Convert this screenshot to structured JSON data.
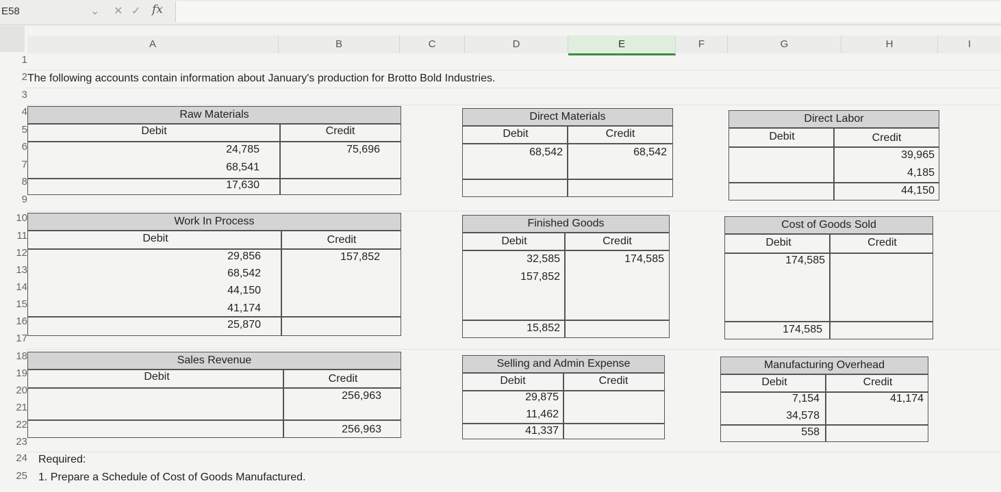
{
  "formula_bar": {
    "name_box": "E58",
    "cancel_icon": "close-icon",
    "enter_icon": "check-icon",
    "fx_label": "fx"
  },
  "columns": [
    "A",
    "B",
    "C",
    "D",
    "E",
    "F",
    "G",
    "H",
    "I"
  ],
  "selected_column": "E",
  "rows": [
    "1",
    "2",
    "3",
    "4",
    "5",
    "6",
    "7",
    "8",
    "9",
    "10",
    "11",
    "12",
    "13",
    "14",
    "15",
    "16",
    "17",
    "18",
    "19",
    "20",
    "21",
    "22",
    "23",
    "24",
    "25"
  ],
  "intro": "The following accounts contain information about January's production for Brotto Bold Industries.",
  "accounts": {
    "raw_materials": {
      "title": "Raw Materials",
      "debit_label": "Debit",
      "credit_label": "Credit",
      "debits": [
        "24,785",
        "68,541",
        "17,630"
      ],
      "credits": [
        "75,696"
      ]
    },
    "direct_materials": {
      "title": "Direct Materials",
      "debit_label": "Debit",
      "credit_label": "Credit",
      "debits": [
        "68,542"
      ],
      "credits": [
        "68,542"
      ]
    },
    "direct_labor": {
      "title": "Direct Labor",
      "debit_label": "Debit",
      "credit_label": "Credit",
      "debits": [],
      "credits": [
        "39,965",
        "4,185",
        "44,150"
      ]
    },
    "work_in_process": {
      "title": "Work In Process",
      "debit_label": "Debit",
      "credit_label": "Credit",
      "debits": [
        "29,856",
        "68,542",
        "44,150",
        "41,174",
        "25,870"
      ],
      "credits": [
        "157,852"
      ]
    },
    "finished_goods": {
      "title": "Finished Goods",
      "debit_label": "Debit",
      "credit_label": "Credit",
      "debits": [
        "32,585",
        "157,852"
      ],
      "credits": [
        "174,585"
      ],
      "debit_balance": "15,852"
    },
    "cost_of_goods_sold": {
      "title": "Cost of Goods Sold",
      "debit_label": "Debit",
      "credit_label": "Credit",
      "debits": [
        "174,585"
      ],
      "credits": [],
      "debit_balance": "174,585"
    },
    "sales_revenue": {
      "title": "Sales Revenue",
      "debit_label": "Debit",
      "credit_label": "Credit",
      "debits": [],
      "credits": [
        "256,963"
      ],
      "credit_balance": "256,963"
    },
    "selling_admin": {
      "title": "Selling and Admin Expense",
      "debit_label": "Debit",
      "credit_label": "Credit",
      "debits": [
        "29,875",
        "11,462"
      ],
      "credits": [],
      "debit_balance": "41,337"
    },
    "manufacturing_overhead": {
      "title": "Manufacturing Overhead",
      "debit_label": "Debit",
      "credit_label": "Credit",
      "debits": [
        "7,154",
        "34,578"
      ],
      "credits": [
        "41,174"
      ],
      "debit_balance": "558"
    }
  },
  "required": {
    "heading": "Required:",
    "item1": "1. Prepare a Schedule of Cost of Goods Manufactured."
  }
}
